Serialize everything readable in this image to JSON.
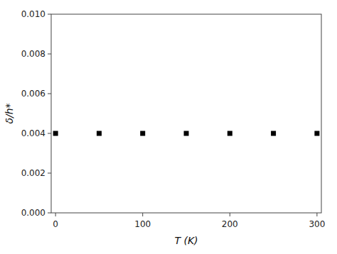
{
  "chart_data": {
    "type": "scatter",
    "x": [
      0,
      50,
      100,
      150,
      200,
      250,
      300
    ],
    "values": [
      0.004,
      0.004,
      0.004,
      0.004,
      0.004,
      0.004,
      0.004
    ],
    "xlim": [
      -5,
      305
    ],
    "ylim": [
      0.0,
      0.01
    ],
    "xticks": [
      0,
      100,
      200,
      300
    ],
    "yticks": [
      {
        "value": 0.0,
        "label": "0.000"
      },
      {
        "value": 0.002,
        "label": "0.002"
      },
      {
        "value": 0.004,
        "label": "0.004"
      },
      {
        "value": 0.006,
        "label": "0.006"
      },
      {
        "value": 0.008,
        "label": "0.008"
      },
      {
        "value": 0.01,
        "label": "0.010"
      }
    ],
    "xlabel": "T (K)",
    "ylabel": "δ/h*",
    "marker": "square",
    "color": "black"
  }
}
